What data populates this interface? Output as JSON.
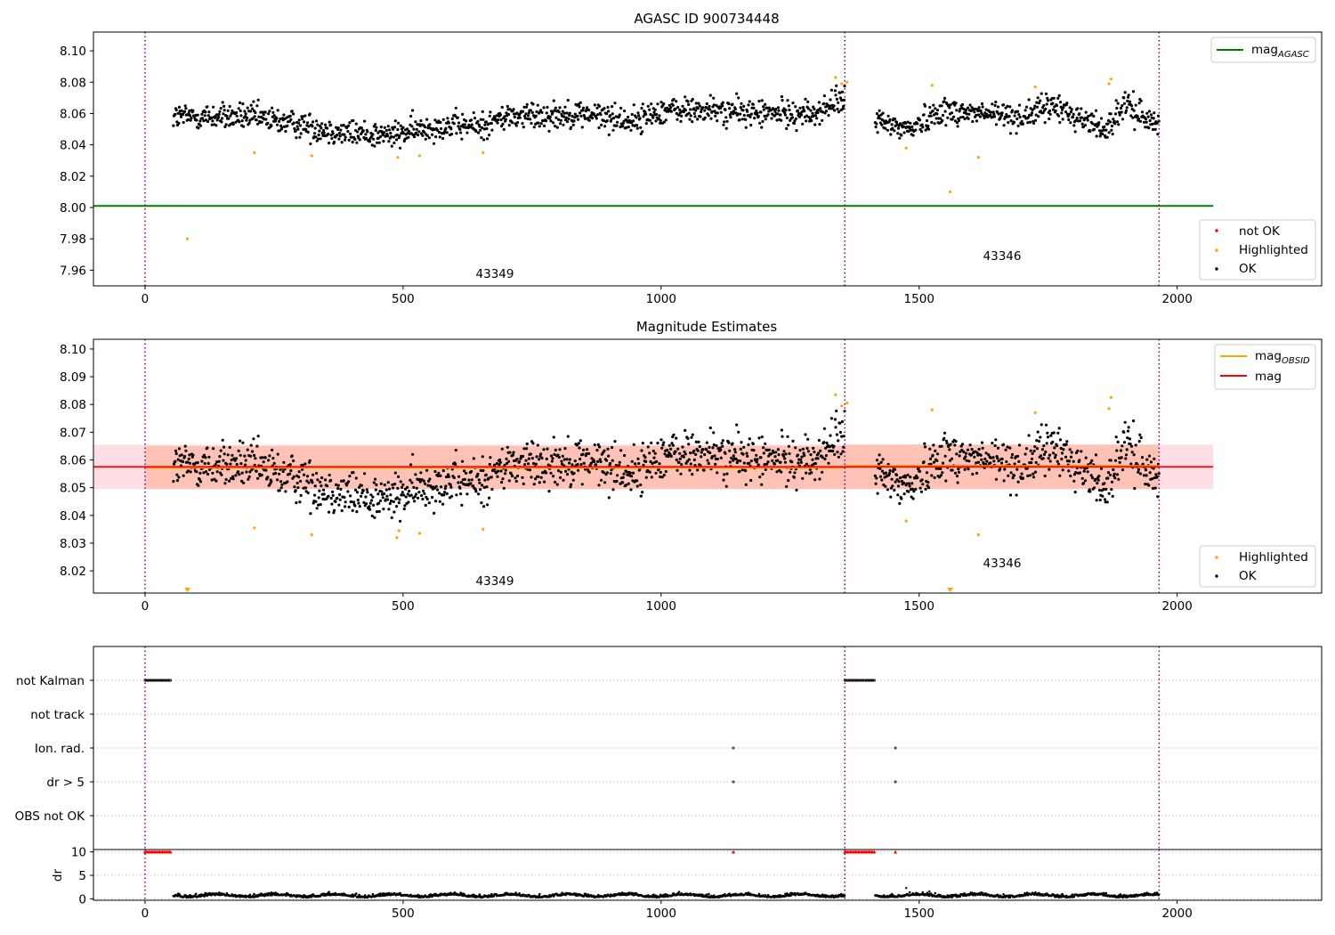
{
  "colors": {
    "ok": "#000000",
    "highlighted": "#ffa500",
    "not_ok": "#ff0000",
    "agasc_line": "#008000",
    "mag_line": "#ff0000",
    "obsid_line": "#ffa500",
    "obsid_band": "#ffa07a",
    "mag_band": "#ffc0cb",
    "obs_divider": "#800080",
    "grid": "#b0b0b0"
  },
  "chart_data": [
    {
      "type": "scatter",
      "title": "AGASC ID 900734448",
      "xlim": [
        -100,
        2280
      ],
      "ylim": [
        7.95,
        8.112
      ],
      "xticks": [
        "0",
        "500",
        "1000",
        "1500",
        "2000"
      ],
      "yticks": [
        "7.96",
        "7.98",
        "8.00",
        "8.02",
        "8.04",
        "8.06",
        "8.08",
        "8.10"
      ],
      "obs_boundaries": [
        0,
        1356,
        1965
      ],
      "obs_labels": [
        {
          "text": "43349",
          "x": 680,
          "y": 7.956
        },
        {
          "text": "43346",
          "x": 1660,
          "y": 7.967
        }
      ],
      "agasc_mag": 8.001,
      "line_extent": [
        -100,
        2070
      ],
      "legend_lines": [
        {
          "label": "mag",
          "sub": "AGASC"
        }
      ],
      "legend_markers": [
        {
          "label": "not OK",
          "color": "#ff0000"
        },
        {
          "label": "Highlighted",
          "color": "#ffa500"
        },
        {
          "label": "OK",
          "color": "#000000"
        }
      ],
      "highlighted": [
        {
          "x": 82,
          "y": 7.98
        },
        {
          "x": 212,
          "y": 8.035
        },
        {
          "x": 323,
          "y": 8.033
        },
        {
          "x": 490,
          "y": 8.032
        },
        {
          "x": 532,
          "y": 8.033
        },
        {
          "x": 655,
          "y": 8.035
        },
        {
          "x": 1338,
          "y": 8.083
        },
        {
          "x": 1350,
          "y": 8.079
        },
        {
          "x": 1360,
          "y": 8.08
        },
        {
          "x": 1475,
          "y": 8.038
        },
        {
          "x": 1525,
          "y": 8.078
        },
        {
          "x": 1560,
          "y": 8.01
        },
        {
          "x": 1615,
          "y": 8.032
        },
        {
          "x": 1725,
          "y": 8.077
        },
        {
          "x": 1868,
          "y": 8.079
        },
        {
          "x": 1872,
          "y": 8.082
        }
      ]
    },
    {
      "type": "scatter",
      "title": "Magnitude Estimates",
      "xlim": [
        -100,
        2280
      ],
      "ylim": [
        8.012,
        8.1035
      ],
      "xticks": [
        "0",
        "500",
        "1000",
        "1500",
        "2000"
      ],
      "yticks": [
        "8.02",
        "8.03",
        "8.04",
        "8.05",
        "8.06",
        "8.07",
        "8.08",
        "8.09",
        "8.10"
      ],
      "obs_boundaries": [
        0,
        1356,
        1965
      ],
      "obs_labels": [
        {
          "text": "43349",
          "x": 680,
          "y": 8.0155
        },
        {
          "text": "43346",
          "x": 1660,
          "y": 8.0225
        }
      ],
      "mag": 8.0575,
      "mag_band": [
        8.0495,
        8.0655
      ],
      "line_extent": [
        -100,
        2070
      ],
      "obsid_mags": [
        {
          "x0": 0,
          "x1": 1356,
          "mag": 8.0572,
          "band": [
            8.0495,
            8.065
          ]
        },
        {
          "x0": 1356,
          "x1": 1965,
          "mag": 8.0578,
          "band": [
            8.0495,
            8.0655
          ]
        }
      ],
      "legend_lines": [
        {
          "label": "mag",
          "sub": "OBSID",
          "color": "#ffa500"
        },
        {
          "label": "mag",
          "sub": "",
          "color": "#ff0000"
        }
      ],
      "legend_markers": [
        {
          "label": "Highlighted",
          "color": "#ffa500"
        },
        {
          "label": "OK",
          "color": "#000000"
        }
      ],
      "highlighted": [
        {
          "x": 212,
          "y": 8.0355
        },
        {
          "x": 323,
          "y": 8.033
        },
        {
          "x": 488,
          "y": 8.032
        },
        {
          "x": 492,
          "y": 8.0345
        },
        {
          "x": 532,
          "y": 8.0335
        },
        {
          "x": 655,
          "y": 8.035
        },
        {
          "x": 1338,
          "y": 8.0835
        },
        {
          "x": 1350,
          "y": 8.0795
        },
        {
          "x": 1360,
          "y": 8.0805
        },
        {
          "x": 1475,
          "y": 8.038
        },
        {
          "x": 1525,
          "y": 8.078
        },
        {
          "x": 1615,
          "y": 8.033
        },
        {
          "x": 1725,
          "y": 8.077
        },
        {
          "x": 1868,
          "y": 8.0785
        },
        {
          "x": 1872,
          "y": 8.0825
        }
      ],
      "below_axis_markers": [
        {
          "x": 82
        },
        {
          "x": 1560
        }
      ]
    },
    {
      "type": "scatter",
      "title": "",
      "xlim": [
        -100,
        2280
      ],
      "xticks": [
        "0",
        "500",
        "1000",
        "1500",
        "2000"
      ],
      "obs_boundaries": [
        0,
        1356,
        1965
      ],
      "flag_rows": [
        "not Kalman",
        "not track",
        "Ion. rad.",
        "dr > 5",
        "OBS not OK"
      ],
      "flag_points": [
        {
          "row": "not Kalman",
          "ranges": [
            [
              0,
              52
            ],
            [
              1356,
              1415
            ]
          ]
        },
        {
          "row": "Ion. rad.",
          "x": [
            1140,
            1454
          ]
        },
        {
          "row": "dr > 5",
          "x": [
            1140,
            1454
          ]
        }
      ],
      "dr": {
        "ylabel": "dr",
        "ylim": [
          -0.3,
          10.5
        ],
        "yticks": [
          "0",
          "5",
          "10"
        ],
        "clipped_value": 10,
        "clipped_ranges": [
          [
            0,
            52
          ],
          [
            1356,
            1415
          ]
        ],
        "clipped_x": [
          1140,
          1454
        ],
        "outliers": [
          {
            "x": 1475,
            "y": 2.3
          },
          {
            "x": 1520,
            "y": 1.6
          }
        ]
      }
    }
  ]
}
